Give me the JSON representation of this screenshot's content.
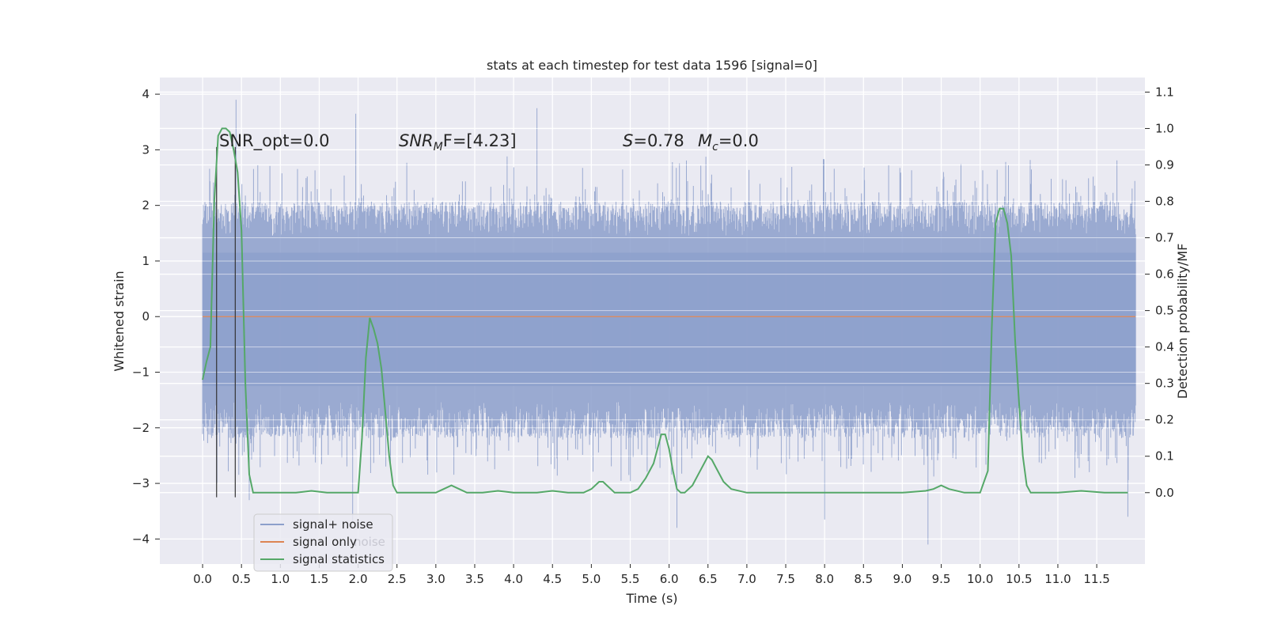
{
  "chart_data": {
    "type": "line",
    "title": "stats at each timestep for test data 1596 [signal=0]",
    "xlabel": "Time (s)",
    "ylabel_left": "Whitened strain",
    "ylabel_right": "Detection probability/MF",
    "xlim": [
      -0.55,
      12.12
    ],
    "ylim_left": [
      -4.45,
      4.3
    ],
    "ylim_right": [
      -0.196,
      1.14
    ],
    "grid": true,
    "legend_position": "lower-left",
    "x_ticks": [
      "0.0",
      "0.5",
      "1.0",
      "1.5",
      "2.0",
      "2.5",
      "3.0",
      "3.5",
      "4.0",
      "4.5",
      "5.0",
      "5.5",
      "6.0",
      "6.5",
      "7.0",
      "7.5",
      "8.0",
      "8.5",
      "9.0",
      "9.5",
      "10.0",
      "10.5",
      "11.0",
      "11.5"
    ],
    "y_ticks_left": [
      "4",
      "3",
      "2",
      "1",
      "0",
      "−1",
      "−2",
      "−3",
      "−4"
    ],
    "y_ticks_right": [
      "1.1",
      "1.0",
      "0.9",
      "0.8",
      "0.7",
      "0.6",
      "0.5",
      "0.4",
      "0.3",
      "0.2",
      "0.1",
      "0.0"
    ],
    "annotations": {
      "snr_opt": "SNR_opt=0.0",
      "snr_mf_label": "SNR",
      "snr_mf_sub": "M",
      "snr_mf_tail": "F=[4.23]",
      "s_label": "S",
      "s_value": "=0.78",
      "mc_label": "M",
      "mc_sub": "c",
      "mc_value": "=0.0"
    },
    "legend": [
      {
        "label": "signal+ noise",
        "color": "#8c9fcb"
      },
      {
        "label": "signal only",
        "color": "#dd8452"
      },
      {
        "label": "signal statistics",
        "color": "#55a868"
      }
    ],
    "legend_hidden_text": "noise",
    "series": [
      {
        "name": "signal+ noise",
        "axis": "left",
        "color": "#8c9fcb",
        "x_range": [
          0.0,
          12.0
        ],
        "envelope_typical": [
          -1.9,
          1.8
        ],
        "notable_peaks": [
          [
            0.43,
            3.9
          ],
          [
            1.97,
            3.65
          ],
          [
            4.3,
            3.75
          ],
          [
            0.6,
            -3.3
          ],
          [
            1.93,
            -3.7
          ],
          [
            6.1,
            -3.8
          ],
          [
            8.0,
            -3.65
          ],
          [
            9.33,
            -4.1
          ],
          [
            11.9,
            -3.6
          ]
        ]
      },
      {
        "name": "signal only",
        "axis": "left",
        "color": "#dd8452",
        "x": [
          0.0,
          12.0
        ],
        "y": [
          0.0,
          0.0
        ]
      },
      {
        "name": "signal statistics",
        "axis": "right",
        "color": "#55a868",
        "x": [
          0.0,
          0.05,
          0.1,
          0.15,
          0.2,
          0.25,
          0.3,
          0.35,
          0.4,
          0.45,
          0.5,
          0.55,
          0.6,
          0.65,
          0.7,
          0.75,
          0.8,
          1.0,
          1.2,
          1.4,
          1.6,
          1.7,
          1.8,
          1.9,
          2.0,
          2.05,
          2.1,
          2.15,
          2.2,
          2.25,
          2.3,
          2.35,
          2.4,
          2.45,
          2.5,
          2.55,
          2.6,
          2.8,
          3.0,
          3.1,
          3.2,
          3.3,
          3.4,
          3.6,
          3.8,
          4.0,
          4.3,
          4.5,
          4.7,
          4.9,
          5.0,
          5.1,
          5.15,
          5.2,
          5.3,
          5.4,
          5.5,
          5.6,
          5.7,
          5.8,
          5.9,
          5.95,
          6.0,
          6.05,
          6.1,
          6.15,
          6.2,
          6.3,
          6.4,
          6.5,
          6.55,
          6.6,
          6.7,
          6.8,
          7.0,
          7.5,
          8.0,
          8.5,
          9.0,
          9.3,
          9.4,
          9.5,
          9.6,
          9.8,
          10.0,
          10.1,
          10.15,
          10.2,
          10.25,
          10.3,
          10.35,
          10.4,
          10.45,
          10.5,
          10.55,
          10.6,
          10.65,
          10.7,
          10.75,
          10.8,
          11.0,
          11.3,
          11.6,
          11.9
        ],
        "y": [
          0.31,
          0.36,
          0.4,
          0.8,
          0.98,
          1.0,
          1.0,
          0.99,
          0.94,
          0.88,
          0.72,
          0.3,
          0.05,
          0.0,
          0.0,
          0.0,
          0.0,
          0.0,
          0.0,
          0.005,
          0.0,
          0.0,
          0.0,
          0.0,
          0.0,
          0.15,
          0.37,
          0.48,
          0.45,
          0.41,
          0.34,
          0.22,
          0.1,
          0.02,
          0.0,
          0.0,
          0.0,
          0.0,
          0.0,
          0.01,
          0.02,
          0.01,
          0.0,
          0.0,
          0.005,
          0.0,
          0.0,
          0.005,
          0.0,
          0.0,
          0.01,
          0.03,
          0.03,
          0.02,
          0.0,
          0.0,
          0.0,
          0.01,
          0.04,
          0.08,
          0.16,
          0.16,
          0.12,
          0.06,
          0.01,
          0.0,
          0.0,
          0.02,
          0.06,
          0.1,
          0.09,
          0.07,
          0.03,
          0.01,
          0.0,
          0.0,
          0.0,
          0.0,
          0.0,
          0.005,
          0.01,
          0.02,
          0.01,
          0.0,
          0.0,
          0.06,
          0.45,
          0.74,
          0.78,
          0.78,
          0.74,
          0.65,
          0.42,
          0.25,
          0.1,
          0.02,
          0.0,
          0.0,
          0.0,
          0.0,
          0.0,
          0.005,
          0.0,
          0.0
        ]
      },
      {
        "name": "vertical markers",
        "axis": "left",
        "color": "#333333",
        "x": [
          0.18,
          0.42
        ],
        "y_range": [
          -3.25,
          3.05
        ]
      }
    ]
  }
}
